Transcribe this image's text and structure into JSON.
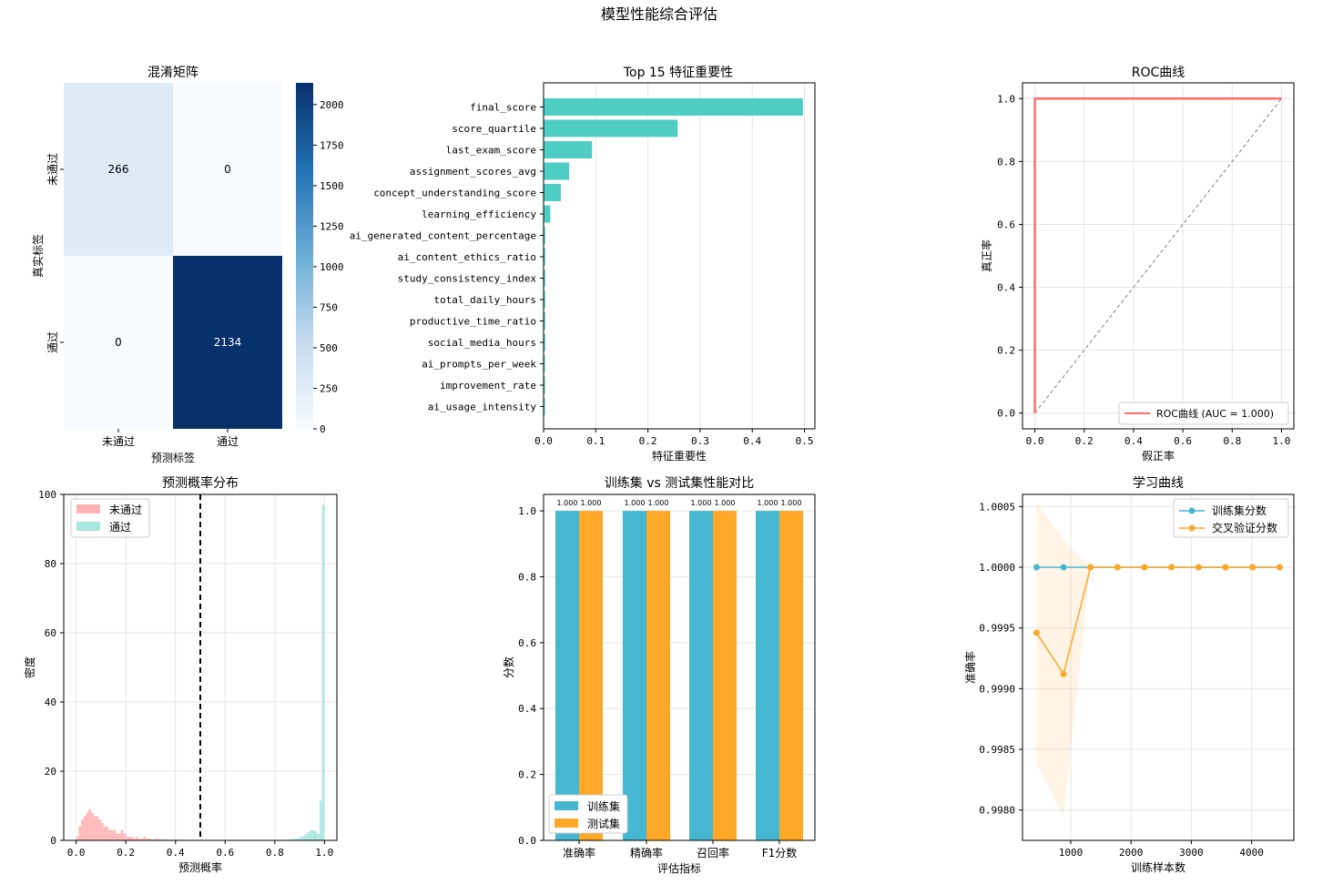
{
  "suptitle": "模型性能综合评估",
  "chart_data": [
    {
      "type": "heatmap",
      "title": "混淆矩阵",
      "xlabel": "预测标签",
      "ylabel": "真实标签",
      "x_categories": [
        "未通过",
        "通过"
      ],
      "y_categories": [
        "未通过",
        "通过"
      ],
      "values": [
        [
          266,
          0
        ],
        [
          0,
          2134
        ]
      ],
      "colorbar": {
        "min": 0,
        "max": 2134,
        "ticks": [
          0,
          250,
          500,
          750,
          1000,
          1250,
          1500,
          1750,
          2000
        ]
      },
      "colors": {
        "low": "#f7fbff",
        "high": "#08306b"
      }
    },
    {
      "type": "bar",
      "orientation": "horizontal",
      "title": "Top 15 特征重要性",
      "xlabel": "特征重要性",
      "categories": [
        "final_score",
        "score_quartile",
        "last_exam_score",
        "assignment_scores_avg",
        "concept_understanding_score",
        "learning_efficiency",
        "ai_generated_content_percentage",
        "ai_content_ethics_ratio",
        "study_consistency_index",
        "total_daily_hours",
        "productive_time_ratio",
        "social_media_hours",
        "ai_prompts_per_week",
        "improvement_rate",
        "ai_usage_intensity"
      ],
      "values": [
        0.497,
        0.257,
        0.093,
        0.049,
        0.033,
        0.013,
        0.003,
        0.003,
        0.003,
        0.003,
        0.003,
        0.003,
        0.002,
        0.002,
        0.002
      ],
      "xlim": [
        0,
        0.52
      ],
      "xticks": [
        0.0,
        0.1,
        0.2,
        0.3,
        0.4,
        0.5
      ],
      "color": "#4ecdc4"
    },
    {
      "type": "line",
      "title": "ROC曲线",
      "xlabel": "假正率",
      "ylabel": "真正率",
      "xlim": [
        -0.05,
        1.05
      ],
      "ylim": [
        -0.05,
        1.05
      ],
      "xticks": [
        0.0,
        0.2,
        0.4,
        0.6,
        0.8,
        1.0
      ],
      "yticks": [
        0.0,
        0.2,
        0.4,
        0.6,
        0.8,
        1.0
      ],
      "series": [
        {
          "name": "ROC曲线 (AUC = 1.000)",
          "x": [
            0,
            0,
            1
          ],
          "y": [
            0,
            1,
            1
          ],
          "color": "#ff6b6b"
        },
        {
          "name": "",
          "x": [
            0,
            1
          ],
          "y": [
            0,
            1
          ],
          "color": "#808080",
          "dashed": true
        }
      ],
      "legend": "lower-right"
    },
    {
      "type": "histogram",
      "title": "预测概率分布",
      "xlabel": "预测概率",
      "ylabel": "密度",
      "xlim": [
        -0.05,
        1.05
      ],
      "ylim": [
        0,
        100
      ],
      "xticks": [
        0.0,
        0.2,
        0.4,
        0.6,
        0.8,
        1.0
      ],
      "yticks": [
        0,
        20,
        40,
        60,
        80,
        100
      ],
      "threshold": 0.5,
      "bin_width": 0.01,
      "series": [
        {
          "name": "未通过",
          "color": "#ffb3b3",
          "bins_start": [
            0.0,
            0.01,
            0.02,
            0.03,
            0.04,
            0.05,
            0.06,
            0.07,
            0.08,
            0.09,
            0.1,
            0.11,
            0.12,
            0.13,
            0.14,
            0.15,
            0.16,
            0.17,
            0.18,
            0.19,
            0.2,
            0.21,
            0.22,
            0.23,
            0.24,
            0.25,
            0.26,
            0.27,
            0.28,
            0.29,
            0.3,
            0.31,
            0.32,
            0.33,
            0.34,
            0.35,
            0.36,
            0.37,
            0.38,
            0.39,
            0.4,
            0.41,
            0.42,
            0.43,
            0.44,
            0.45
          ],
          "density": [
            1,
            4,
            6,
            7,
            8,
            9,
            8,
            7,
            7,
            6,
            5,
            4,
            4,
            3,
            3,
            3,
            2,
            2,
            3,
            2,
            1,
            1,
            1,
            0.5,
            1,
            0.5,
            0.5,
            1,
            0.5,
            0.5,
            0.3,
            0.3,
            0.5,
            0.3,
            0.3,
            0.3,
            0.2,
            0.3,
            0.2,
            0.2,
            0.2,
            0.2,
            0.1,
            0.2,
            0.1,
            0.1
          ]
        },
        {
          "name": "通过",
          "color": "#a8e6df",
          "bins_start": [
            0.85,
            0.86,
            0.87,
            0.88,
            0.89,
            0.9,
            0.91,
            0.92,
            0.93,
            0.94,
            0.95,
            0.96,
            0.97,
            0.98,
            0.99
          ],
          "density": [
            0.2,
            0.3,
            0.3,
            0.5,
            0.6,
            1,
            1.2,
            1.8,
            2.3,
            2.8,
            3,
            2.6,
            2,
            11.5,
            97
          ]
        }
      ],
      "legend": "upper-left"
    },
    {
      "type": "bar",
      "title": "训练集 vs 测试集性能对比",
      "xlabel": "评估指标",
      "ylabel": "分数",
      "categories": [
        "准确率",
        "精确率",
        "召回率",
        "F1分数"
      ],
      "ylim": [
        0,
        1.05
      ],
      "yticks": [
        0.0,
        0.2,
        0.4,
        0.6,
        0.8,
        1.0
      ],
      "series": [
        {
          "name": "训练集",
          "values": [
            1.0,
            1.0,
            1.0,
            1.0
          ],
          "color": "#45b7d1"
        },
        {
          "name": "测试集",
          "values": [
            1.0,
            1.0,
            1.0,
            1.0
          ],
          "color": "#ffa726"
        }
      ],
      "data_labels": [
        "1.000",
        "1.000",
        "1.000",
        "1.000",
        "1.000",
        "1.000",
        "1.000",
        "1.000"
      ],
      "legend": "lower-left"
    },
    {
      "type": "line",
      "title": "学习曲线",
      "xlabel": "训练样本数",
      "ylabel": "准确率",
      "xlim": [
        200,
        4700
      ],
      "ylim": [
        0.99775,
        1.0006
      ],
      "xticks": [
        1000,
        2000,
        3000,
        4000
      ],
      "yticks": [
        0.998,
        0.9985,
        0.999,
        0.9995,
        1.0,
        1.0005
      ],
      "ytick_labels": [
        "0.9980",
        "0.9985",
        "0.9990",
        "0.9995",
        "1.0000",
        "1.0005"
      ],
      "x": [
        432,
        880,
        1328,
        1776,
        2224,
        2672,
        3120,
        3568,
        4016,
        4464
      ],
      "series": [
        {
          "name": "训练集分数",
          "values": [
            1.0,
            1.0,
            1.0,
            1.0,
            1.0,
            1.0,
            1.0,
            1.0,
            1.0,
            1.0
          ],
          "color": "#45b7d1"
        },
        {
          "name": "交叉验证分数",
          "values": [
            0.99946,
            0.99912,
            1.0,
            1.0,
            1.0,
            1.0,
            1.0,
            1.0,
            1.0,
            1.0
          ],
          "color": "#ffa726",
          "band_low": [
            0.99838,
            0.99795,
            1.0,
            1.0,
            1.0,
            1.0,
            1.0,
            1.0,
            1.0,
            1.0
          ],
          "band_high": [
            1.00053,
            1.00023,
            1.0,
            1.0,
            1.0,
            1.0,
            1.0,
            1.0,
            1.0,
            1.0
          ]
        }
      ],
      "legend": "upper-right"
    }
  ]
}
